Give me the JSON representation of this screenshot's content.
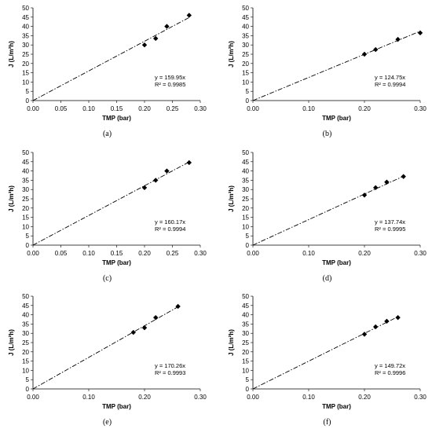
{
  "chart_data": [
    {
      "type": "scatter",
      "panel_label": "(a)",
      "xlabel": "TMP (bar)",
      "ylabel": "J (L/m²h)",
      "xlim": [
        0,
        0.3
      ],
      "ylim": [
        0,
        50
      ],
      "xticks": [
        "0.00",
        "0.05",
        "0.10",
        "0.15",
        "0.20",
        "0.25",
        "0.30"
      ],
      "yticks": [
        "0",
        "5",
        "10",
        "15",
        "20",
        "25",
        "30",
        "35",
        "40",
        "45",
        "50"
      ],
      "points": [
        [
          0.2,
          30
        ],
        [
          0.22,
          33.5
        ],
        [
          0.24,
          40
        ],
        [
          0.28,
          46
        ]
      ],
      "trendline": {
        "slope": 159.95,
        "x_end": 0.28
      },
      "equation": "y = 159.95x",
      "r2": "R² = 0.9985"
    },
    {
      "type": "scatter",
      "panel_label": "(b)",
      "xlabel": "TMP (bar)",
      "ylabel": "J (L/m²h)",
      "xlim": [
        0,
        0.3
      ],
      "ylim": [
        0,
        50
      ],
      "xticks": [
        "0.00",
        "0.10",
        "0.20",
        "0.30"
      ],
      "yticks": [
        "0",
        "5",
        "10",
        "15",
        "20",
        "25",
        "30",
        "35",
        "40",
        "45",
        "50"
      ],
      "points": [
        [
          0.2,
          25
        ],
        [
          0.22,
          27.5
        ],
        [
          0.26,
          33
        ],
        [
          0.3,
          36.5
        ]
      ],
      "trendline": {
        "slope": 124.75,
        "x_end": 0.3
      },
      "equation": "y = 124.75x",
      "r2": "R² = 0.9994"
    },
    {
      "type": "scatter",
      "panel_label": "(c)",
      "xlabel": "TMP (bar)",
      "ylabel": "J (L/m²h)",
      "xlim": [
        0,
        0.3
      ],
      "ylim": [
        0,
        50
      ],
      "xticks": [
        "0.00",
        "0.05",
        "0.10",
        "0.15",
        "0.20",
        "0.25",
        "0.30"
      ],
      "yticks": [
        "0",
        "5",
        "10",
        "15",
        "20",
        "25",
        "30",
        "35",
        "40",
        "45",
        "50"
      ],
      "points": [
        [
          0.2,
          31
        ],
        [
          0.22,
          35
        ],
        [
          0.24,
          40
        ],
        [
          0.28,
          44.5
        ]
      ],
      "trendline": {
        "slope": 160.17,
        "x_end": 0.28
      },
      "equation": "y = 160.17x",
      "r2": "R² = 0.9994"
    },
    {
      "type": "scatter",
      "panel_label": "(d)",
      "xlabel": "TMP (bar)",
      "ylabel": "J (L/m²h)",
      "xlim": [
        0,
        0.3
      ],
      "ylim": [
        0,
        50
      ],
      "xticks": [
        "0.00",
        "0.10",
        "0.20",
        "0.30"
      ],
      "yticks": [
        "0",
        "5",
        "10",
        "15",
        "20",
        "25",
        "30",
        "35",
        "40",
        "45",
        "50"
      ],
      "points": [
        [
          0.2,
          27
        ],
        [
          0.22,
          31
        ],
        [
          0.24,
          34
        ],
        [
          0.27,
          37
        ]
      ],
      "trendline": {
        "slope": 137.74,
        "x_end": 0.27
      },
      "equation": "y = 137.74x",
      "r2": "R² = 0.9995"
    },
    {
      "type": "scatter",
      "panel_label": "(e)",
      "xlabel": "TMP (bar)",
      "ylabel": "J (L/m²h)",
      "xlim": [
        0,
        0.3
      ],
      "ylim": [
        0,
        50
      ],
      "xticks": [
        "0.00",
        "0.10",
        "0.20",
        "0.30"
      ],
      "yticks": [
        "0",
        "5",
        "10",
        "15",
        "20",
        "25",
        "30",
        "35",
        "40",
        "45",
        "50"
      ],
      "points": [
        [
          0.18,
          30.5
        ],
        [
          0.2,
          33
        ],
        [
          0.22,
          38.5
        ],
        [
          0.26,
          44.5
        ]
      ],
      "trendline": {
        "slope": 170.26,
        "x_end": 0.26
      },
      "equation": "y = 170.26x",
      "r2": "R² = 0.9993"
    },
    {
      "type": "scatter",
      "panel_label": "(f)",
      "xlabel": "TMP (bar)",
      "ylabel": "J (L/m²h)",
      "xlim": [
        0,
        0.3
      ],
      "ylim": [
        0,
        50
      ],
      "xticks": [
        "0.00",
        "0.10",
        "0.20",
        "0.30"
      ],
      "yticks": [
        "0",
        "5",
        "10",
        "15",
        "20",
        "25",
        "30",
        "35",
        "40",
        "45",
        "50"
      ],
      "points": [
        [
          0.2,
          29.5
        ],
        [
          0.22,
          33.5
        ],
        [
          0.24,
          36.5
        ],
        [
          0.26,
          38.5
        ]
      ],
      "trendline": {
        "slope": 149.72,
        "x_end": 0.26
      },
      "equation": "y = 149.72x",
      "r2": "R² = 0.9996"
    }
  ]
}
